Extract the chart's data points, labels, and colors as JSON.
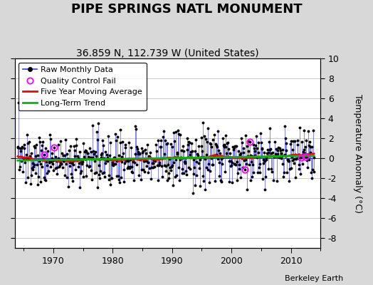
{
  "title": "PIPE SPRINGS NATL MONUMENT",
  "subtitle": "36.859 N, 112.739 W (United States)",
  "ylabel": "Temperature Anomaly (°C)",
  "credit": "Berkeley Earth",
  "year_start": 1964,
  "year_end": 2013,
  "ylim": [
    -9,
    10
  ],
  "yticks": [
    -8,
    -6,
    -4,
    -2,
    0,
    2,
    4,
    6,
    8,
    10
  ],
  "fig_bg_color": "#d8d8d8",
  "plot_bg_color": "#ffffff",
  "raw_color": "#3333ff",
  "ma_color": "#ff0000",
  "trend_color": "#00bb00",
  "qc_color": "#ff00ff",
  "seed": 137,
  "title_fontsize": 13,
  "subtitle_fontsize": 10,
  "tick_fontsize": 9,
  "ylabel_fontsize": 9,
  "legend_fontsize": 8,
  "credit_fontsize": 8
}
